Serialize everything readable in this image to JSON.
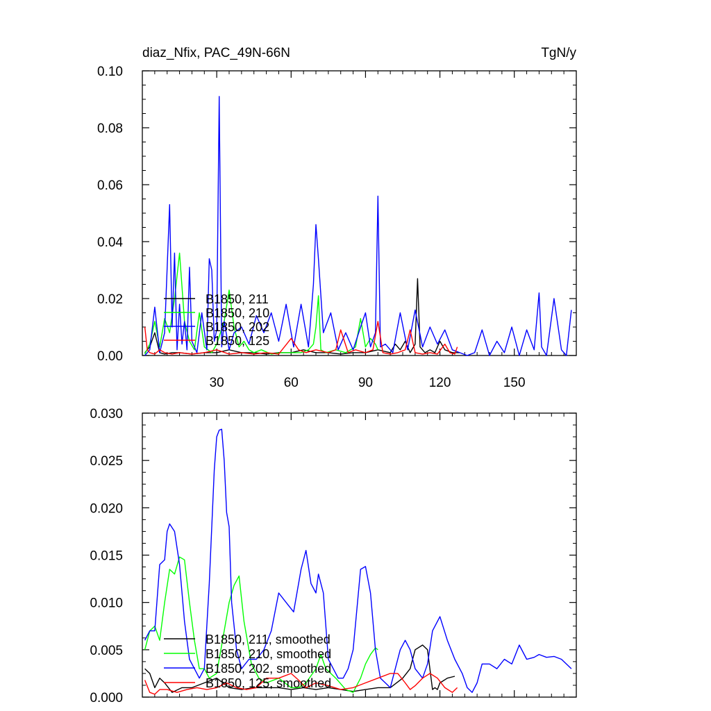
{
  "header": {
    "title": "diaz_Nfix, PAC_49N-66N",
    "units": "TgN/y"
  },
  "chart_data": [
    {
      "type": "line",
      "title": "diaz_Nfix, PAC_49N-66N",
      "units": "TgN/y",
      "xlim": [
        0,
        175
      ],
      "ylim": [
        0,
        0.1
      ],
      "xticks": [
        30,
        60,
        90,
        120,
        150
      ],
      "xtick_labels": [
        "30",
        "60",
        "90",
        "120",
        "150"
      ],
      "yticks": [
        0,
        0.02,
        0.04,
        0.06,
        0.08,
        0.1
      ],
      "ytick_labels": [
        "0.00",
        "0.02",
        "0.04",
        "0.06",
        "0.08",
        "0.10"
      ],
      "legend_position": "lower-left",
      "series": [
        {
          "name": "B1850, 211",
          "color": "#000000",
          "x": [
            1,
            3,
            5,
            7,
            9,
            12,
            15,
            20,
            25,
            30,
            35,
            40,
            45,
            50,
            55,
            60,
            65,
            70,
            75,
            80,
            85,
            90,
            95,
            100,
            102,
            104,
            106,
            108,
            110,
            111,
            112,
            114,
            116,
            118,
            120,
            122,
            125,
            128
          ],
          "y": [
            0.001,
            0.003,
            0.008,
            0.001,
            0.0005,
            0.001,
            0.001,
            0.0005,
            0.001,
            0.001,
            0.002,
            0.001,
            0.001,
            0.0005,
            0.001,
            0.001,
            0.002,
            0.001,
            0.001,
            0.0005,
            0.001,
            0.001,
            0.002,
            0.001,
            0.004,
            0.002,
            0.005,
            0.001,
            0.004,
            0.027,
            0.003,
            0.001,
            0.002,
            0.001,
            0.005,
            0.002,
            0.001,
            0.001
          ]
        },
        {
          "name": "B1850, 210",
          "color": "#00ff00",
          "x": [
            1,
            3,
            5,
            7,
            9,
            11,
            13,
            15,
            17,
            19,
            21,
            23,
            25,
            28,
            30,
            33,
            35,
            37,
            39,
            41,
            43,
            45,
            48,
            52,
            56,
            60,
            64,
            67,
            69,
            70,
            71,
            72,
            74,
            78,
            82,
            86,
            88,
            90,
            92,
            94,
            95
          ],
          "y": [
            0.0005,
            0.004,
            0.012,
            0.003,
            0.013,
            0.008,
            0.02,
            0.036,
            0.012,
            0.005,
            0.002,
            0.015,
            0.003,
            0.001,
            0.004,
            0.012,
            0.023,
            0.01,
            0.003,
            0.005,
            0.002,
            0.001,
            0.002,
            0.0005,
            0.001,
            0.001,
            0.001,
            0.002,
            0.004,
            0.01,
            0.021,
            0.002,
            0.001,
            0.002,
            0.001,
            0.003,
            0.013,
            0.003,
            0.006,
            0.004,
            0.002
          ]
        },
        {
          "name": "B1850, 202",
          "color": "#0000ff",
          "x": [
            1,
            3,
            5,
            7,
            9,
            11,
            12,
            13,
            14,
            15,
            16,
            17,
            18,
            19,
            20,
            22,
            24,
            26,
            27,
            28,
            29,
            30,
            31,
            32,
            33,
            35,
            37,
            40,
            43,
            46,
            49,
            52,
            55,
            58,
            61,
            64,
            67,
            69,
            70,
            71,
            73,
            76,
            79,
            82,
            85,
            88,
            90,
            92,
            94,
            95,
            96,
            98,
            101,
            104,
            107,
            110,
            113,
            116,
            119,
            122,
            125,
            128,
            131,
            134,
            137,
            140,
            143,
            146,
            149,
            152,
            155,
            158,
            160,
            161,
            163,
            166,
            169,
            171,
            173
          ],
          "y": [
            0.0,
            0.002,
            0.017,
            0.001,
            0.008,
            0.053,
            0.01,
            0.036,
            0.002,
            0.018,
            0.004,
            0.012,
            0.002,
            0.031,
            0.005,
            0.001,
            0.015,
            0.002,
            0.034,
            0.03,
            0.005,
            0.009,
            0.091,
            0.003,
            0.012,
            0.002,
            0.008,
            0.01,
            0.004,
            0.014,
            0.008,
            0.015,
            0.005,
            0.018,
            0.003,
            0.018,
            0.003,
            0.025,
            0.046,
            0.034,
            0.008,
            0.015,
            0.002,
            0.008,
            0.002,
            0.01,
            0.015,
            0.003,
            0.008,
            0.056,
            0.003,
            0.004,
            0.001,
            0.015,
            0.002,
            0.016,
            0.003,
            0.01,
            0.004,
            0.009,
            0.002,
            0.001,
            0.0,
            0.001,
            0.009,
            0.0,
            0.005,
            0.001,
            0.01,
            0.0,
            0.009,
            0.002,
            0.022,
            0.003,
            0.0,
            0.02,
            0.002,
            0.0,
            0.016
          ]
        },
        {
          "name": "B1850, 125",
          "color": "#ff0000",
          "x": [
            1,
            2,
            3,
            5,
            7,
            9,
            12,
            15,
            20,
            25,
            30,
            35,
            40,
            45,
            50,
            55,
            60,
            63,
            66,
            70,
            75,
            78,
            80,
            83,
            86,
            90,
            93,
            95,
            97,
            100,
            103,
            106,
            108,
            110,
            113,
            116,
            119,
            122,
            124,
            126,
            127
          ],
          "y": [
            0.01,
            0.002,
            0.001,
            0.0005,
            0.002,
            0.001,
            0.0005,
            0.001,
            0.0005,
            0.001,
            0.002,
            0.0005,
            0.001,
            0.0005,
            0.001,
            0.0005,
            0.006,
            0.002,
            0.001,
            0.002,
            0.001,
            0.002,
            0.009,
            0.001,
            0.002,
            0.001,
            0.002,
            0.012,
            0.001,
            0.0005,
            0.001,
            0.002,
            0.009,
            0.001,
            0.0005,
            0.001,
            0.0005,
            0.004,
            0.001,
            0.0005,
            0.003
          ]
        }
      ]
    },
    {
      "type": "line",
      "xlim": [
        0,
        175
      ],
      "ylim": [
        0,
        0.03
      ],
      "xticks": [
        30,
        60,
        90,
        120,
        150
      ],
      "yticks": [
        0,
        0.005,
        0.01,
        0.015,
        0.02,
        0.025,
        0.03
      ],
      "ytick_labels": [
        "0.000",
        "0.005",
        "0.010",
        "0.015",
        "0.020",
        "0.025",
        "0.030"
      ],
      "legend_position": "lower-left",
      "series": [
        {
          "name": "B1850, 211, smoothed",
          "color": "#000000",
          "x": [
            1,
            3,
            5,
            7,
            9,
            12,
            16,
            20,
            25,
            30,
            35,
            40,
            45,
            50,
            55,
            60,
            65,
            70,
            75,
            80,
            85,
            90,
            95,
            100,
            105,
            108,
            110,
            113,
            115,
            117,
            118,
            119,
            120,
            123,
            126
          ],
          "y": [
            0.003,
            0.0025,
            0.001,
            0.002,
            0.0015,
            0.0005,
            0.001,
            0.001,
            0.0015,
            0.002,
            0.001,
            0.0008,
            0.001,
            0.001,
            0.001,
            0.0008,
            0.001,
            0.0008,
            0.001,
            0.0008,
            0.0006,
            0.0008,
            0.001,
            0.001,
            0.002,
            0.003,
            0.005,
            0.0055,
            0.005,
            0.0008,
            0.001,
            0.0008,
            0.0015,
            0.002,
            0.0022
          ]
        },
        {
          "name": "B1850, 210, smoothed",
          "color": "#00ff00",
          "x": [
            1,
            3,
            5,
            7,
            9,
            11,
            13,
            15,
            17,
            19,
            21,
            23,
            25,
            27,
            30,
            33,
            35,
            37,
            39,
            41,
            44,
            47,
            50,
            55,
            60,
            63,
            66,
            70,
            72,
            74,
            78,
            82,
            85,
            88,
            90,
            92,
            94,
            95
          ],
          "y": [
            0.005,
            0.007,
            0.0075,
            0.006,
            0.01,
            0.0135,
            0.013,
            0.0148,
            0.0145,
            0.01,
            0.006,
            0.003,
            0.003,
            0.002,
            0.0025,
            0.007,
            0.01,
            0.0118,
            0.0128,
            0.008,
            0.0035,
            0.002,
            0.0015,
            0.002,
            0.001,
            0.001,
            0.0015,
            0.003,
            0.0045,
            0.003,
            0.002,
            0.0008,
            0.0005,
            0.002,
            0.0035,
            0.0045,
            0.0052,
            0.005
          ]
        },
        {
          "name": "B1850, 202, smoothed",
          "color": "#0000ff",
          "x": [
            1,
            3,
            5,
            7,
            9,
            10,
            11,
            13,
            15,
            17,
            19,
            21,
            23,
            25,
            27,
            29,
            30,
            31,
            32,
            33,
            34,
            35,
            36,
            38,
            40,
            43,
            46,
            49,
            52,
            55,
            58,
            61,
            64,
            66,
            68,
            70,
            71,
            73,
            75,
            77,
            79,
            81,
            83,
            85,
            88,
            90,
            92,
            94,
            96,
            98,
            100,
            102,
            104,
            106,
            108,
            110,
            113,
            115,
            117,
            120,
            123,
            126,
            129,
            131,
            133,
            135,
            137,
            140,
            143,
            146,
            149,
            152,
            155,
            158,
            160,
            163,
            166,
            169,
            171,
            173
          ],
          "y": [
            0.006,
            0.007,
            0.007,
            0.014,
            0.0145,
            0.0175,
            0.0183,
            0.0175,
            0.014,
            0.008,
            0.004,
            0.003,
            0.002,
            0.003,
            0.012,
            0.024,
            0.0275,
            0.0282,
            0.0283,
            0.025,
            0.0195,
            0.018,
            0.01,
            0.005,
            0.003,
            0.004,
            0.004,
            0.005,
            0.007,
            0.011,
            0.01,
            0.009,
            0.0135,
            0.0155,
            0.012,
            0.011,
            0.013,
            0.011,
            0.004,
            0.003,
            0.002,
            0.002,
            0.003,
            0.005,
            0.0135,
            0.0138,
            0.011,
            0.005,
            0.002,
            0.0015,
            0.001,
            0.003,
            0.005,
            0.006,
            0.005,
            0.003,
            0.002,
            0.0035,
            0.007,
            0.0085,
            0.006,
            0.004,
            0.0025,
            0.001,
            0.0005,
            0.0015,
            0.0035,
            0.0035,
            0.003,
            0.004,
            0.0035,
            0.0055,
            0.004,
            0.0042,
            0.0045,
            0.0042,
            0.0043,
            0.004,
            0.0035,
            0.003
          ]
        },
        {
          "name": "B1850, 125, smoothed",
          "color": "#ff0000",
          "x": [
            1,
            3,
            5,
            7,
            10,
            14,
            18,
            22,
            26,
            30,
            34,
            38,
            42,
            46,
            50,
            55,
            60,
            63,
            66,
            70,
            75,
            80,
            85,
            90,
            95,
            100,
            103,
            106,
            108,
            110,
            113,
            116,
            119,
            122,
            125,
            127
          ],
          "y": [
            0.0018,
            0.0005,
            0.0003,
            0.0008,
            0.0008,
            0.0005,
            0.0008,
            0.001,
            0.0008,
            0.001,
            0.0015,
            0.001,
            0.0008,
            0.001,
            0.002,
            0.002,
            0.0025,
            0.0018,
            0.001,
            0.0015,
            0.0012,
            0.0008,
            0.001,
            0.0015,
            0.002,
            0.0025,
            0.0025,
            0.0015,
            0.0008,
            0.0012,
            0.002,
            0.0025,
            0.002,
            0.001,
            0.0005,
            0.001
          ]
        }
      ]
    }
  ]
}
